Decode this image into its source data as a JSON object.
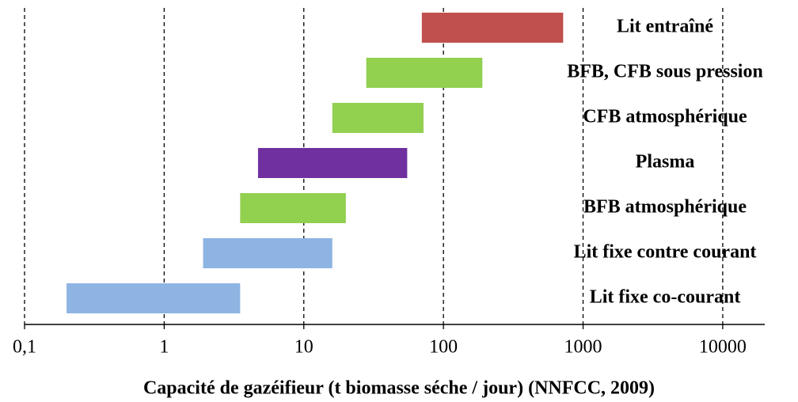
{
  "chart_data": {
    "type": "floating_bar",
    "orientation": "horizontal",
    "x_label": "Capacité de gazéifieur (t biomasse séche / jour) (NNFCC, 2009)",
    "categories": [
      "Lit  entraîné",
      "BFB, CFB sous pression",
      "CFB atmosphérique",
      "Plasma",
      "BFB atmosphérique",
      "Lit fixe contre courant",
      "Lit fixe co-courant"
    ],
    "low": [
      70,
      28,
      16,
      4.7,
      3.5,
      1.9,
      0.2
    ],
    "high": [
      720,
      190,
      72,
      55,
      20,
      16,
      3.5
    ],
    "colors": [
      "#c0504d",
      "#92d050",
      "#92d050",
      "#7030a0",
      "#92d050",
      "#8eb4e3",
      "#8eb4e3"
    ],
    "x_log": true,
    "xlim": [
      0.1,
      20000
    ],
    "xticks": [
      {
        "value": 0.1,
        "label": "0,1"
      },
      1,
      10,
      100,
      1000,
      10000
    ],
    "grid": true,
    "grid_style": "dashed"
  }
}
